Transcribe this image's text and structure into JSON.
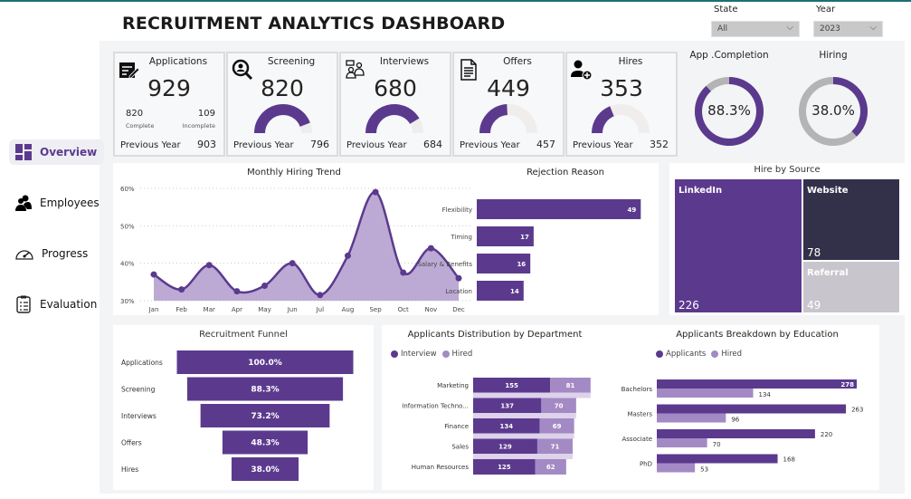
{
  "header": {
    "title": "RECRUITMENT ANALYTICS DASHBOARD"
  },
  "filters": {
    "state_label": "State",
    "state_value": "All",
    "year_label": "Year",
    "year_value": "2023"
  },
  "sidebar": {
    "items": [
      {
        "label": "Overview",
        "icon": "dashboard-grid-icon",
        "active": true
      },
      {
        "label": "Employees",
        "icon": "users-icon"
      },
      {
        "label": "Progress",
        "icon": "speedometer-icon"
      },
      {
        "label": "Evaluation",
        "icon": "clipboard-checklist-icon"
      }
    ]
  },
  "kpis": {
    "applications": {
      "title": "Applications",
      "value": "929",
      "complete": "820",
      "complete_label": "Complete",
      "incomplete": "109",
      "incomplete_label": "Incomplete",
      "prev_label": "Previous Year",
      "prev": "903",
      "icon": "application-form-icon"
    },
    "screening": {
      "title": "Screening",
      "value": "820",
      "prev_label": "Previous Year",
      "prev": "796",
      "gauge_pct": 88.3,
      "icon": "search-person-icon"
    },
    "interviews": {
      "title": "Interviews",
      "value": "680",
      "prev_label": "Previous Year",
      "prev": "684",
      "gauge_pct": 82.9,
      "icon": "interview-icon"
    },
    "offers": {
      "title": "Offers",
      "value": "449",
      "prev_label": "Previous Year",
      "prev": "457",
      "gauge_pct": 48.3,
      "icon": "document-icon"
    },
    "hires": {
      "title": "Hires",
      "value": "353",
      "prev_label": "Previous Year",
      "prev": "352",
      "gauge_pct": 38.0,
      "icon": "add-user-icon"
    }
  },
  "donuts": {
    "completion": {
      "title": "App .Completion",
      "label": "88.3%",
      "value": 88.3
    },
    "hiring": {
      "title": "Hiring",
      "label": "38.0%",
      "value": 38.0
    }
  },
  "colors": {
    "primary": "#5b3a8e",
    "light": "#a48ac4",
    "area": "#bcaad4",
    "track": "#b4b4b4",
    "dark": "#33304a",
    "referral": "#c8c6cc"
  },
  "chart_data": [
    {
      "type": "area",
      "title": "Monthly Hiring Trend",
      "categories": [
        "Jan",
        "Feb",
        "Mar",
        "Apr",
        "May",
        "Jun",
        "Jul",
        "Aug",
        "Sep",
        "Oct",
        "Nov",
        "Dec"
      ],
      "values": [
        37,
        33,
        39.5,
        32.5,
        34,
        40,
        31.5,
        42,
        59,
        37.5,
        44,
        36
      ],
      "unit": "%",
      "ylim": [
        30,
        60
      ],
      "yticks": [
        "30%",
        "40%",
        "50%",
        "60%"
      ],
      "grid": true
    },
    {
      "type": "bar",
      "title": "Rejection Reason",
      "categories": [
        "Flexibility",
        "Timing",
        "Salary & Benefits",
        "Location"
      ],
      "values": [
        49,
        17,
        16,
        14
      ]
    },
    {
      "type": "treemap",
      "title": "Hire by Source",
      "categories": [
        "LinkedIn",
        "Website",
        "Referral"
      ],
      "values": [
        226,
        78,
        49
      ]
    },
    {
      "type": "funnel",
      "title": "Recruitment Funnel",
      "categories": [
        "Applications",
        "Screening",
        "Interviews",
        "Offers",
        "Hires"
      ],
      "values": [
        100.0,
        88.3,
        73.2,
        48.3,
        38.0
      ],
      "labels": [
        "100.0%",
        "88.3%",
        "73.2%",
        "48.3%",
        "38.0%"
      ]
    },
    {
      "type": "bar",
      "stacked": true,
      "title": "Applicants Distribution by Department",
      "categories": [
        "Marketing",
        "Information Techno...",
        "Finance",
        "Sales",
        "Human Resources"
      ],
      "series": [
        {
          "name": "Interview",
          "values": [
            155,
            137,
            134,
            129,
            125
          ]
        },
        {
          "name": "Hired",
          "values": [
            81,
            70,
            69,
            71,
            62
          ]
        }
      ],
      "legend": "top-left"
    },
    {
      "type": "bar",
      "title": "Applicants Breakdown by Education",
      "categories": [
        "Bachelors",
        "Masters",
        "Associate",
        "PhD"
      ],
      "series": [
        {
          "name": "Applicants",
          "values": [
            278,
            263,
            220,
            168
          ]
        },
        {
          "name": "Hired",
          "values": [
            134,
            96,
            70,
            53
          ]
        }
      ],
      "legend": "top-left"
    }
  ]
}
